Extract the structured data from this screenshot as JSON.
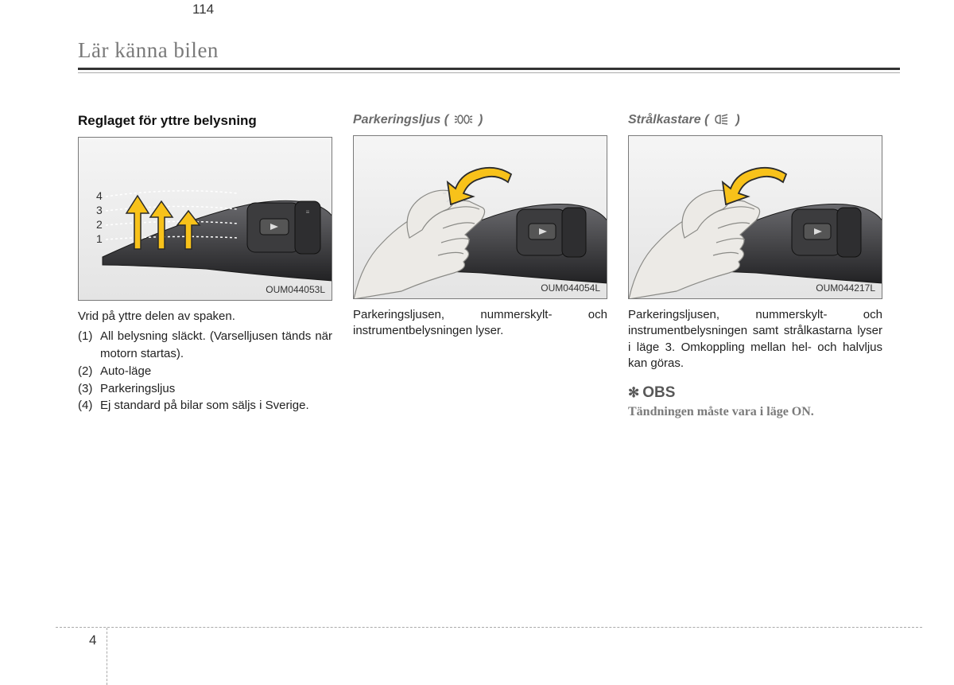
{
  "header": {
    "title": "Lär känna bilen"
  },
  "col1": {
    "title": "Reglaget för yttre belysning",
    "figure_caption": "OUM044053L",
    "intro": "Vrid på yttre delen av spaken.",
    "items": [
      {
        "num": "(1)",
        "text": "All belysning släckt. (Varselljusen tänds när motorn startas)."
      },
      {
        "num": "(2)",
        "text": "Auto-läge"
      },
      {
        "num": "(3)",
        "text": "Parkeringsljus"
      },
      {
        "num": "(4)",
        "text": "Ej standard på bilar som säljs i Sverige."
      }
    ],
    "lever_numbers": [
      "4",
      "3",
      "2",
      "1"
    ]
  },
  "col2": {
    "title": "Parkeringsljus (",
    "title_end": ")",
    "figure_caption": "OUM044054L",
    "body": "Parkeringsljusen, nummerskylt- och instrumentbelysningen lyser."
  },
  "col3": {
    "title": "Strålkastare (",
    "title_end": ")",
    "figure_caption": "OUM044217L",
    "body": "Parkeringsljusen, nummerskylt- och instrumentbelysningen samt strålkastarna lyser i läge 3. Omkoppling mellan hel- och halvljus kan göras.",
    "obs_label": "OBS",
    "obs_body": "Tändningen måste vara i läge ON."
  },
  "footer": {
    "section": "4",
    "page": "114"
  },
  "colors": {
    "arrow_fill": "#f8c21a",
    "arrow_stroke": "#2b2b2b",
    "hand_fill": "#eceae6",
    "hand_stroke": "#8a8a86",
    "lever_dark": "#3c3c3e",
    "lever_darker": "#222224",
    "lever_highlight": "#6a6a6e"
  }
}
